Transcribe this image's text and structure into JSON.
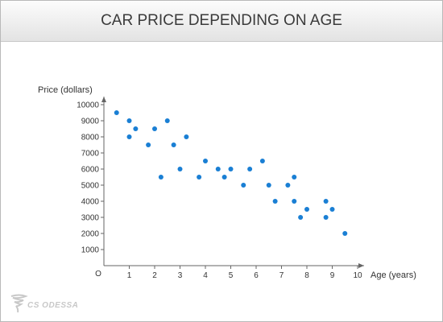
{
  "chart_data": {
    "type": "scatter",
    "title": "CAR PRICE DEPENDING ON AGE",
    "xlabel": "Age (years)",
    "ylabel": "Price (dollars)",
    "xlim": [
      0,
      10
    ],
    "ylim": [
      0,
      10000
    ],
    "x_ticks": [
      1,
      2,
      3,
      4,
      5,
      6,
      7,
      8,
      9,
      10
    ],
    "y_ticks": [
      1000,
      2000,
      3000,
      4000,
      5000,
      6000,
      7000,
      8000,
      9000,
      10000
    ],
    "origin_label": "O",
    "grid": false,
    "color": "#1a7fd4",
    "points": [
      {
        "x": 0.5,
        "y": 9500
      },
      {
        "x": 1.0,
        "y": 9000
      },
      {
        "x": 1.0,
        "y": 8000
      },
      {
        "x": 1.25,
        "y": 8500
      },
      {
        "x": 1.75,
        "y": 7500
      },
      {
        "x": 2.0,
        "y": 8500
      },
      {
        "x": 2.25,
        "y": 5500
      },
      {
        "x": 2.5,
        "y": 9000
      },
      {
        "x": 2.75,
        "y": 7500
      },
      {
        "x": 3.0,
        "y": 6000
      },
      {
        "x": 3.25,
        "y": 8000
      },
      {
        "x": 3.75,
        "y": 5500
      },
      {
        "x": 4.0,
        "y": 6500
      },
      {
        "x": 4.5,
        "y": 6000
      },
      {
        "x": 4.75,
        "y": 5500
      },
      {
        "x": 5.0,
        "y": 6000
      },
      {
        "x": 5.5,
        "y": 5000
      },
      {
        "x": 5.75,
        "y": 6000
      },
      {
        "x": 6.25,
        "y": 6500
      },
      {
        "x": 6.5,
        "y": 5000
      },
      {
        "x": 6.75,
        "y": 4000
      },
      {
        "x": 7.25,
        "y": 5000
      },
      {
        "x": 7.5,
        "y": 5500
      },
      {
        "x": 7.5,
        "y": 4000
      },
      {
        "x": 7.75,
        "y": 3000
      },
      {
        "x": 8.0,
        "y": 3500
      },
      {
        "x": 8.75,
        "y": 4000
      },
      {
        "x": 8.75,
        "y": 3000
      },
      {
        "x": 9.0,
        "y": 3500
      },
      {
        "x": 9.5,
        "y": 2000
      }
    ]
  },
  "logo": {
    "text": "CS ODESSA"
  }
}
